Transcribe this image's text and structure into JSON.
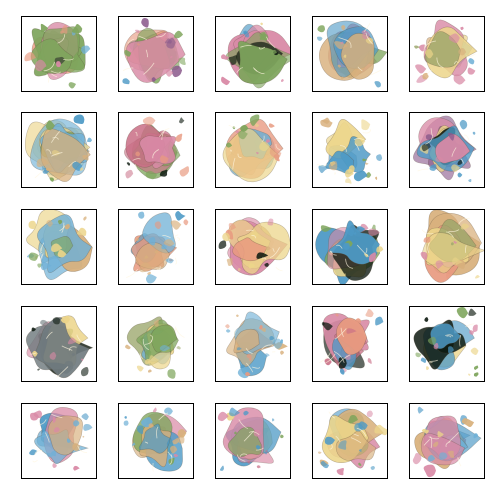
{
  "grid": {
    "rows": 5,
    "cols": 5,
    "background_color": "#ffffff",
    "frame_color": "#000000"
  },
  "palette": {
    "salmon": "#e89a80",
    "pink": "#d98aa6",
    "rose": "#c96f86",
    "blue": "#4e9ac6",
    "sky": "#6fb0d6",
    "green": "#7ea55c",
    "olive": "#9aa56a",
    "yellow": "#ecd58a",
    "cream": "#f2dcb0",
    "tan": "#d8b07c",
    "purple": "#8a5a8c",
    "dark": "#0e1a10",
    "grey": "#6f7a7e"
  },
  "tiles": [
    {
      "name": "tile-r1-c1",
      "colors": [
        "#e89a80",
        "#d98aa6",
        "#6fb0d6",
        "#7ea55c",
        "#2b2b2b"
      ],
      "density": 0.75,
      "seed": 11
    },
    {
      "name": "tile-r1-c2",
      "colors": [
        "#d98aa6",
        "#e89a80",
        "#7ea55c",
        "#4e9ac6",
        "#8a5a8c"
      ],
      "density": 0.65,
      "seed": 23
    },
    {
      "name": "tile-r1-c3",
      "colors": [
        "#0e1a10",
        "#d98aa6",
        "#7ea55c",
        "#4e9ac6",
        "#ecd58a"
      ],
      "density": 0.8,
      "seed": 37
    },
    {
      "name": "tile-r1-c4",
      "colors": [
        "#4e9ac6",
        "#ecd58a",
        "#d8b07c",
        "#7ea55c",
        "#d98aa6"
      ],
      "density": 0.7,
      "seed": 41
    },
    {
      "name": "tile-r1-c5",
      "colors": [
        "#d8b07c",
        "#9aa56a",
        "#ecd58a",
        "#6fb0d6",
        "#d98aa6"
      ],
      "density": 0.7,
      "seed": 53
    },
    {
      "name": "tile-r2-c1",
      "colors": [
        "#4e9ac6",
        "#7ea55c",
        "#ecd58a",
        "#d8b07c",
        "#6fb0d6"
      ],
      "density": 0.8,
      "seed": 61
    },
    {
      "name": "tile-r2-c2",
      "colors": [
        "#0e1a10",
        "#d98aa6",
        "#c96f86",
        "#e89a80",
        "#7ea55c"
      ],
      "density": 0.8,
      "seed": 71
    },
    {
      "name": "tile-r2-c3",
      "colors": [
        "#d98aa6",
        "#e89a80",
        "#ecd58a",
        "#7ea55c",
        "#6fb0d6"
      ],
      "density": 0.65,
      "seed": 83
    },
    {
      "name": "tile-r2-c4",
      "colors": [
        "#4e9ac6",
        "#ecd58a",
        "#d8b07c",
        "#7ea55c"
      ],
      "density": 0.35,
      "seed": 97
    },
    {
      "name": "tile-r2-c5",
      "colors": [
        "#8a5a8c",
        "#d98aa6",
        "#0e1a10",
        "#4e9ac6",
        "#ecd58a"
      ],
      "density": 0.75,
      "seed": 101
    },
    {
      "name": "tile-r3-c1",
      "colors": [
        "#4e9ac6",
        "#d8b07c",
        "#ecd58a",
        "#7ea55c",
        "#6fb0d6"
      ],
      "density": 0.6,
      "seed": 113
    },
    {
      "name": "tile-r3-c2",
      "colors": [
        "#4e9ac6",
        "#d8b07c",
        "#e89a80",
        "#6fb0d6"
      ],
      "density": 0.4,
      "seed": 127
    },
    {
      "name": "tile-r3-c3",
      "colors": [
        "#d98aa6",
        "#e89a80",
        "#d8b07c",
        "#0e1a10",
        "#ecd58a"
      ],
      "density": 0.7,
      "seed": 131
    },
    {
      "name": "tile-r3-c4",
      "colors": [
        "#7ea55c",
        "#4e9ac6",
        "#ecd58a",
        "#0e1a10",
        "#d98aa6"
      ],
      "density": 0.65,
      "seed": 139
    },
    {
      "name": "tile-r3-c5",
      "colors": [
        "#ecd58a",
        "#d8b07c",
        "#e89a80",
        "#9aa56a",
        "#d98aa6"
      ],
      "density": 0.85,
      "seed": 149
    },
    {
      "name": "tile-r4-c1",
      "colors": [
        "#0e1a10",
        "#7ea55c",
        "#ecd58a",
        "#6f7a7e",
        "#d98aa6"
      ],
      "density": 0.7,
      "seed": 157
    },
    {
      "name": "tile-r4-c2",
      "colors": [
        "#ecd58a",
        "#9aa56a",
        "#d8b07c",
        "#6fb0d6",
        "#7ea55c"
      ],
      "density": 0.85,
      "seed": 163
    },
    {
      "name": "tile-r4-c3",
      "colors": [
        "#4e9ac6",
        "#d8b07c",
        "#e89a80",
        "#6fb0d6"
      ],
      "density": 0.35,
      "seed": 173
    },
    {
      "name": "tile-r4-c4",
      "colors": [
        "#d98aa6",
        "#c96f86",
        "#0e1a10",
        "#4e9ac6",
        "#e89a80"
      ],
      "density": 0.55,
      "seed": 181
    },
    {
      "name": "tile-r4-c5",
      "colors": [
        "#4e9ac6",
        "#0e1a10",
        "#d98aa6",
        "#ecd58a",
        "#7ea55c"
      ],
      "density": 0.5,
      "seed": 191
    },
    {
      "name": "tile-r5-c1",
      "colors": [
        "#4e9ac6",
        "#6fb0d6",
        "#d8b07c",
        "#d98aa6"
      ],
      "density": 0.45,
      "seed": 199
    },
    {
      "name": "tile-r5-c2",
      "colors": [
        "#4e9ac6",
        "#7ea55c",
        "#d98aa6",
        "#d8b07c",
        "#6fb0d6"
      ],
      "density": 0.5,
      "seed": 211
    },
    {
      "name": "tile-r5-c3",
      "colors": [
        "#c96f86",
        "#7ea55c",
        "#4e9ac6",
        "#d98aa6",
        "#ecd58a"
      ],
      "density": 0.55,
      "seed": 223
    },
    {
      "name": "tile-r5-c4",
      "colors": [
        "#d98aa6",
        "#ecd58a",
        "#4e9ac6",
        "#7ea55c",
        "#d8b07c"
      ],
      "density": 0.6,
      "seed": 227
    },
    {
      "name": "tile-r5-c5",
      "colors": [
        "#4e9ac6",
        "#d98aa6",
        "#ecd58a",
        "#d8b07c",
        "#6fb0d6"
      ],
      "density": 0.7,
      "seed": 233
    }
  ]
}
